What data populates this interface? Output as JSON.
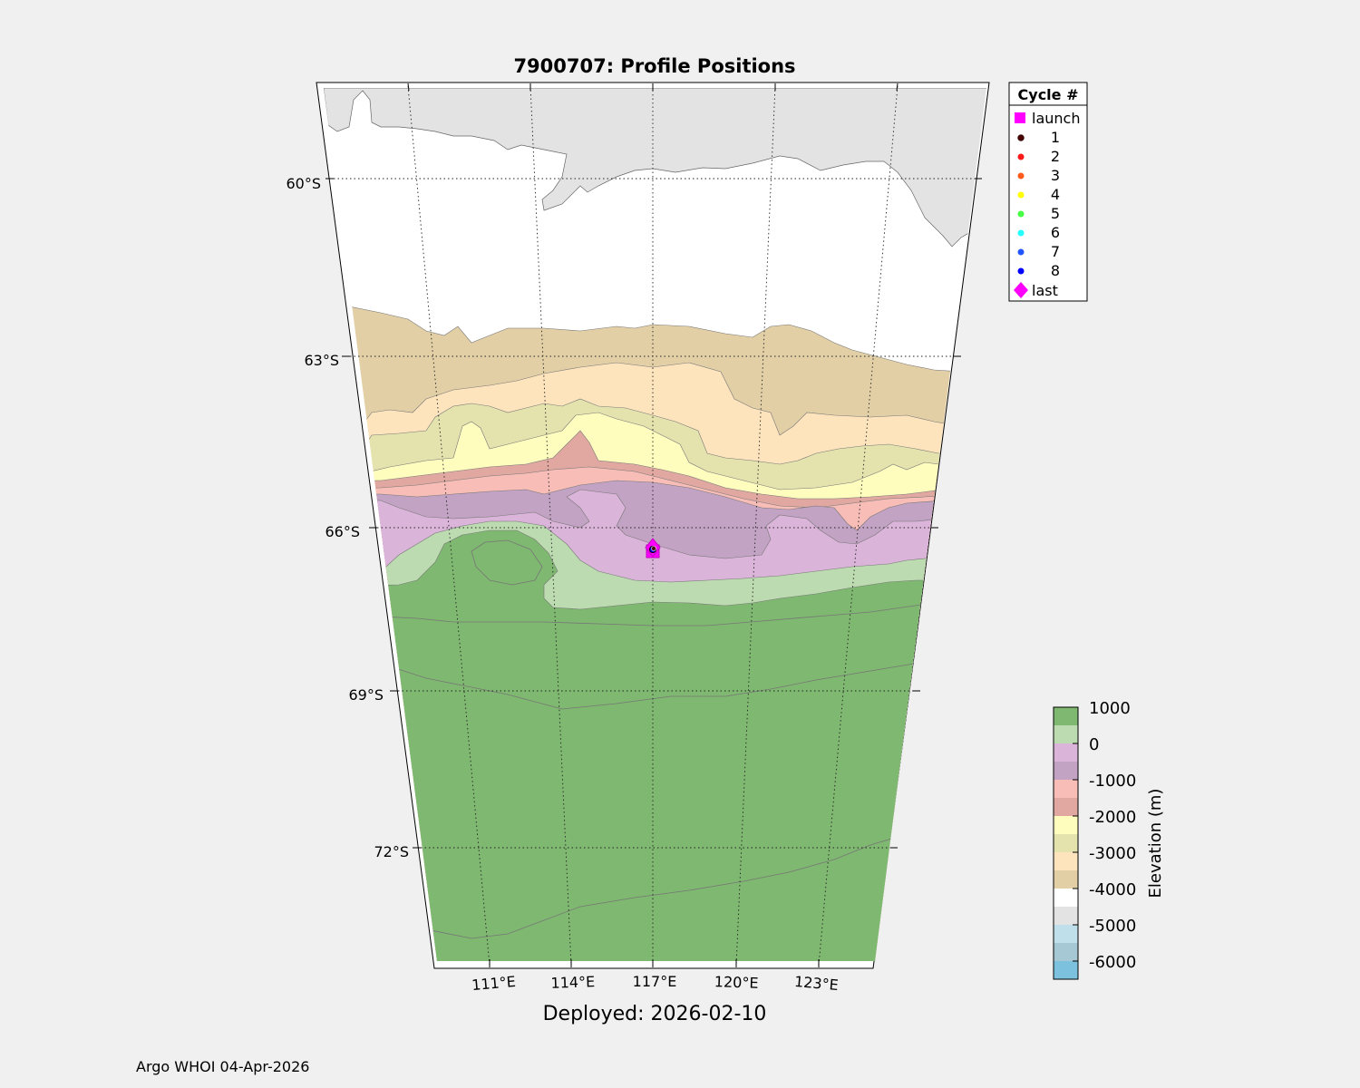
{
  "title": "7900707: Profile Positions",
  "subtitle": "Deployed: 2026-02-10",
  "footer": "Argo WHOI 04-Apr-2026",
  "map": {
    "lat_labels": [
      {
        "lat": -60,
        "text": "60°S"
      },
      {
        "lat": -63,
        "text": "63°S"
      },
      {
        "lat": -66,
        "text": "66°S"
      },
      {
        "lat": -69,
        "text": "69°S"
      },
      {
        "lat": -72,
        "text": "72°S"
      }
    ],
    "lon_labels": [
      {
        "lon": 111,
        "text": "111°E"
      },
      {
        "lon": 114,
        "text": "114°E"
      },
      {
        "lon": 117,
        "text": "117°E"
      },
      {
        "lon": 120,
        "text": "120°E"
      },
      {
        "lon": 123,
        "text": "123°E"
      }
    ],
    "float_position": {
      "lat": -66.3,
      "lon": 117.0
    }
  },
  "legend": {
    "title": "Cycle #",
    "items": [
      {
        "label": "launch",
        "marker": "square",
        "color": "#ff00ff"
      },
      {
        "label": "1",
        "marker": "dot",
        "color": "#4a0000"
      },
      {
        "label": "2",
        "marker": "dot",
        "color": "#ff1a1a"
      },
      {
        "label": "3",
        "marker": "dot",
        "color": "#ff5a1a"
      },
      {
        "label": "4",
        "marker": "dot",
        "color": "#ffff00"
      },
      {
        "label": "5",
        "marker": "dot",
        "color": "#44ff44"
      },
      {
        "label": "6",
        "marker": "dot",
        "color": "#22ffff"
      },
      {
        "label": "7",
        "marker": "dot",
        "color": "#2255ff"
      },
      {
        "label": "8",
        "marker": "dot",
        "color": "#0000ff"
      },
      {
        "label": "last",
        "marker": "diamond",
        "color": "#ff00ff"
      }
    ]
  },
  "colorbar": {
    "label": "Elevation (m)",
    "ticks": [
      "1000",
      "0",
      "-1000",
      "-2000",
      "-3000",
      "-4000",
      "-5000",
      "-6000"
    ],
    "colors_top_to_bottom": [
      "#7fb870",
      "#bcdbb0",
      "#dbb4da",
      "#c3a3c3",
      "#f8bdb6",
      "#e0a8a0",
      "#fffdbe",
      "#e4e3ae",
      "#fde4bc",
      "#e2cfa6",
      "#ffffff",
      "#e3e3e3",
      "#bfe0ea",
      "#a6c8d4",
      "#7cc2de"
    ]
  }
}
